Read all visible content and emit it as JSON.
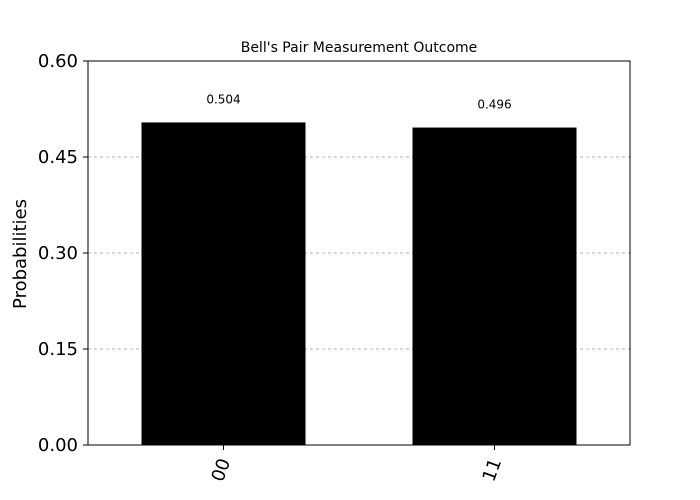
{
  "chart_data": {
    "type": "bar",
    "title": "Bell's Pair Measurement Outcome",
    "xlabel": "",
    "ylabel": "Probabilities",
    "categories": [
      "00",
      "11"
    ],
    "values": [
      0.504,
      0.496
    ],
    "value_labels": [
      "0.504",
      "0.496"
    ],
    "yticks": [
      0.0,
      0.15,
      0.3,
      0.45,
      0.6
    ],
    "ytick_labels": [
      "0.00",
      "0.15",
      "0.30",
      "0.45",
      "0.60"
    ],
    "ylim": [
      0,
      0.6
    ],
    "grid": "horizontal dashed",
    "bar_color": "#000000",
    "grid_color": "#b0b0b0"
  }
}
